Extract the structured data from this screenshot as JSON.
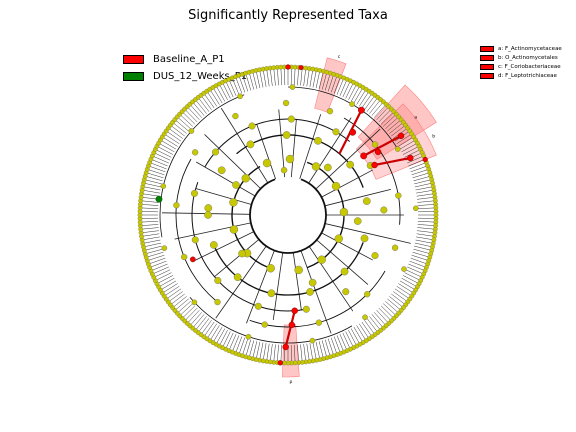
{
  "chart_data": {
    "type": "cladogram",
    "title": "Significantly Represented Taxa",
    "legend": [
      {
        "label": "Baseline_A_P1",
        "color": "#ff0000"
      },
      {
        "label": "DUS_12_Weeks_P1",
        "color": "#008000"
      }
    ],
    "clade_legend": [
      {
        "label": "a: F_Actinomycetaceae",
        "color": "#ff0000"
      },
      {
        "label": "b: O_Actinomycetales",
        "color": "#ff0000"
      },
      {
        "label": "c: F_Coriobacteriaceae",
        "color": "#ff0000"
      },
      {
        "label": "d: F_Leptotrichiaceae",
        "color": "#ff0000"
      }
    ],
    "clade_markers": [
      "c",
      "a",
      "b",
      "p"
    ],
    "node_colors": {
      "neutral": "#c8c800",
      "baseline": "#ff0000",
      "dus": "#008000"
    }
  }
}
